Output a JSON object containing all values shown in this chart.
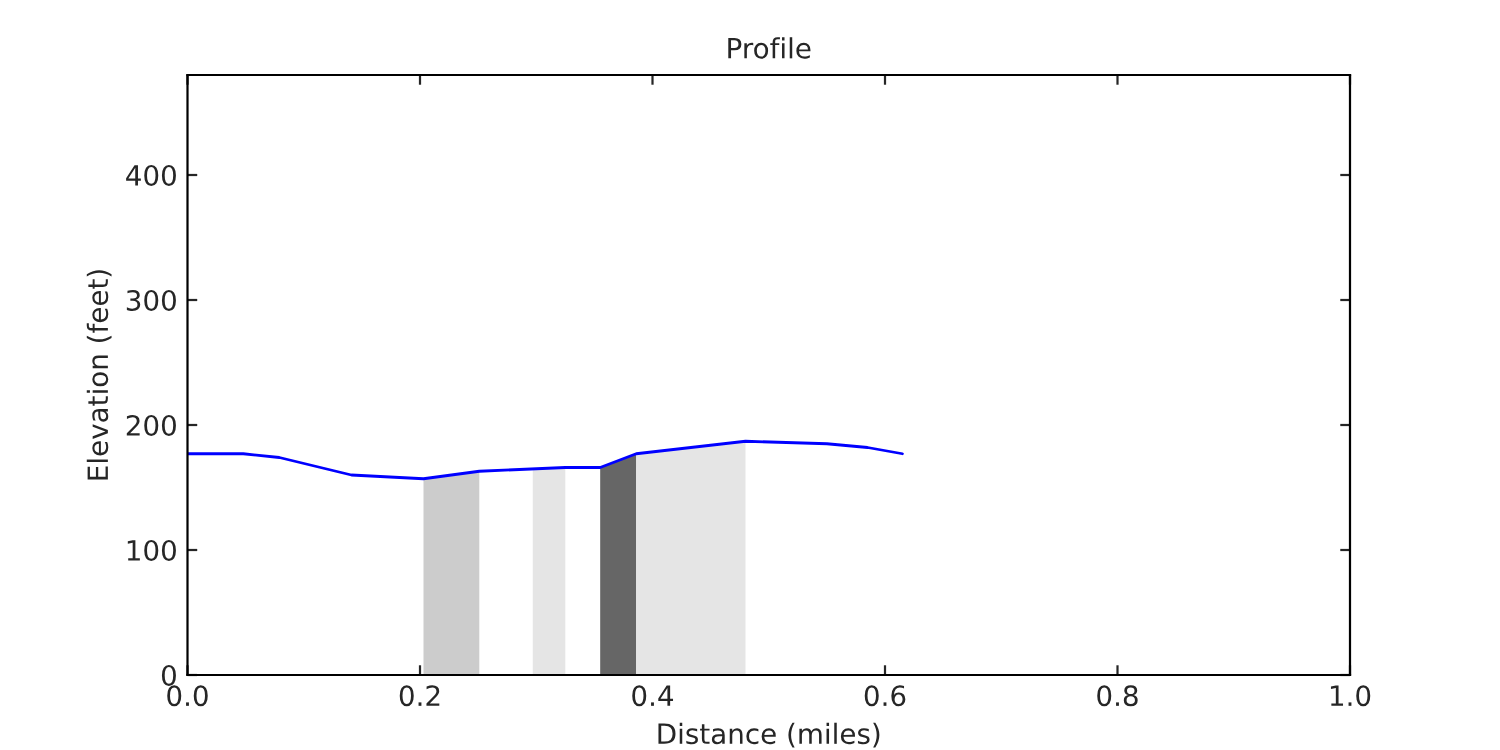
{
  "chart_data": {
    "type": "line",
    "title": "Profile",
    "xlabel": "Distance (miles)",
    "ylabel": "Elevation (feet)",
    "xlim": [
      0,
      1
    ],
    "ylim": [
      0,
      480
    ],
    "xticks": [
      {
        "value": 0,
        "label": "0.0"
      },
      {
        "value": 0.2,
        "label": "0.2"
      },
      {
        "value": 0.4,
        "label": "0.4"
      },
      {
        "value": 0.6,
        "label": "0.6"
      },
      {
        "value": 0.8,
        "label": "0.8"
      },
      {
        "value": 1,
        "label": "1.0"
      }
    ],
    "yticks": [
      0,
      100,
      200,
      300,
      400
    ],
    "series": [
      {
        "type": "area",
        "color": "#cccccc",
        "x": [
          0.203,
          0.251
        ],
        "values": [
          157,
          163
        ]
      },
      {
        "type": "area",
        "color": "#e5e5e5",
        "x": [
          0.297,
          0.325
        ],
        "values": [
          165,
          166
        ]
      },
      {
        "type": "area",
        "color": "#666666",
        "x": [
          0.355,
          0.386
        ],
        "values": [
          166,
          177
        ]
      },
      {
        "type": "area",
        "color": "#e5e5e5",
        "x": [
          0.386,
          0.48
        ],
        "values": [
          177,
          187
        ]
      },
      {
        "color": "#0000ff",
        "x": [
          0,
          0.048,
          0.079,
          0.141,
          0.203,
          0.251,
          0.325,
          0.355,
          0.386,
          0.48,
          0.55,
          0.585,
          0.615
        ],
        "values": [
          177,
          177,
          174,
          160,
          157,
          163,
          166,
          166,
          177,
          187,
          185,
          182,
          177
        ]
      }
    ]
  }
}
